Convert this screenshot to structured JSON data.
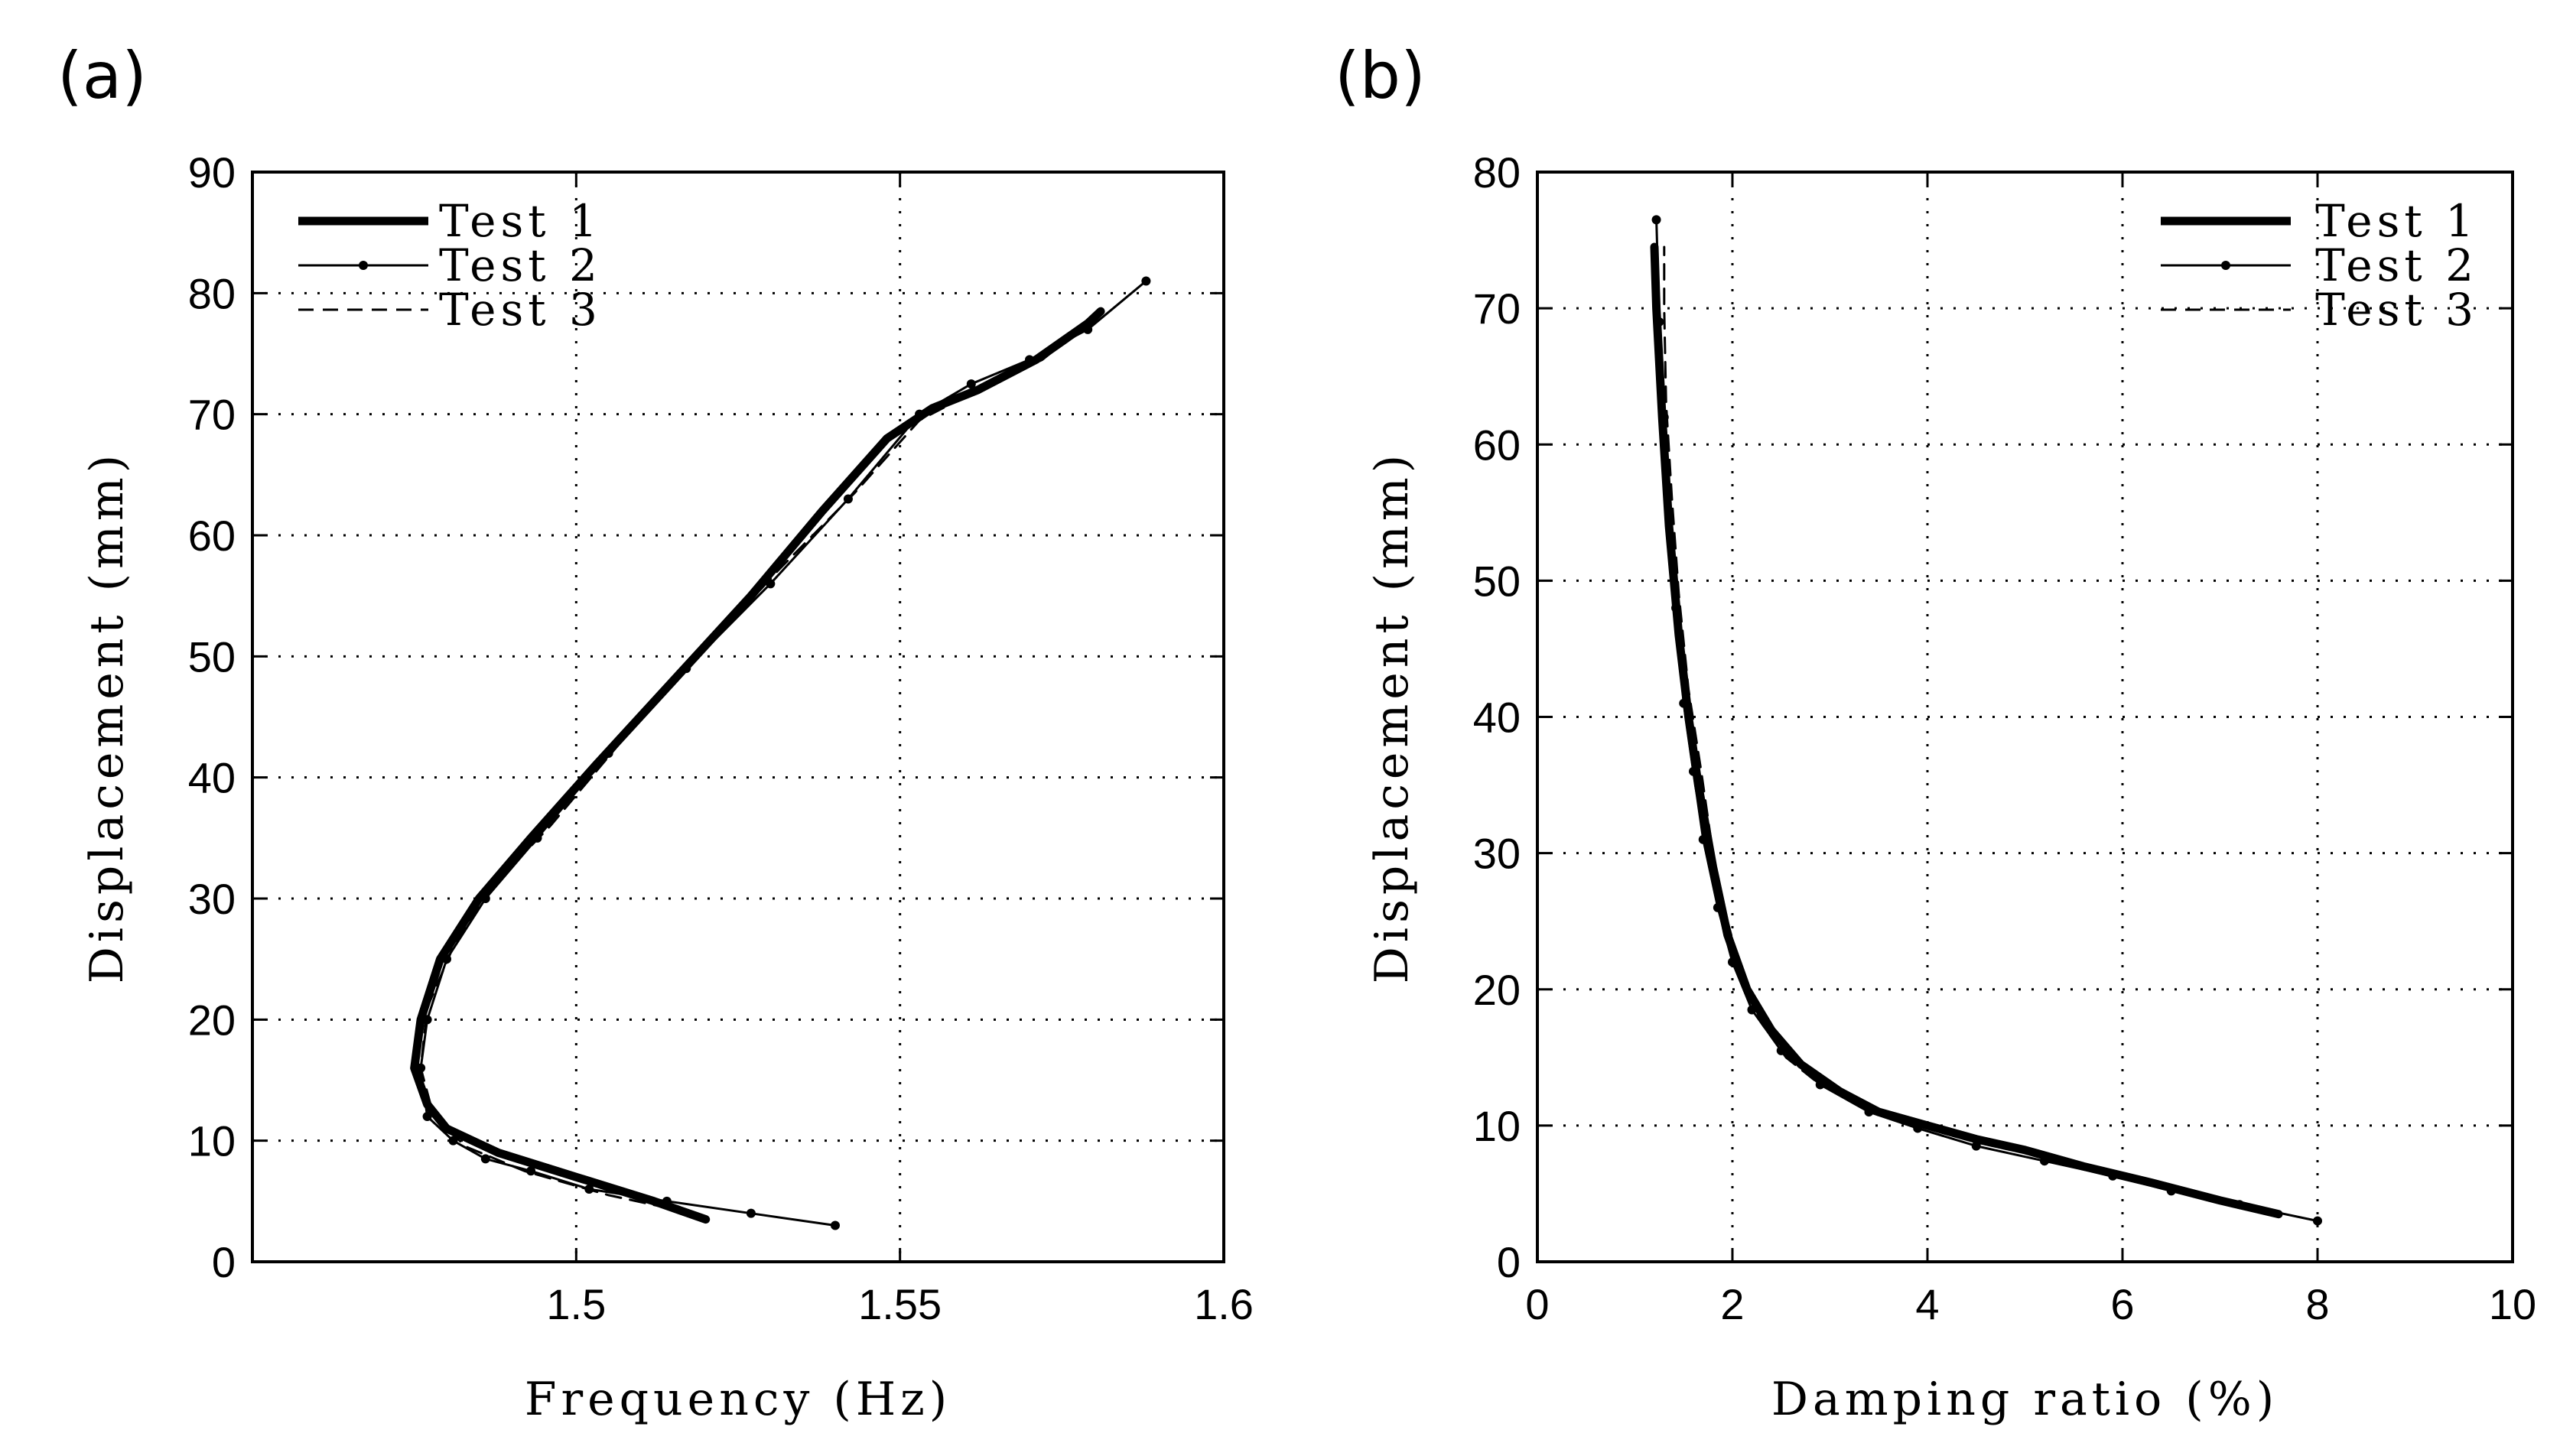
{
  "figure": {
    "panel_labels": [
      "(a)",
      "(b)"
    ]
  },
  "chart_data": [
    {
      "type": "line",
      "panel": "(a)",
      "title": "",
      "xlabel": "Frequency (Hz)",
      "ylabel": "Displacement (mm)",
      "xlim": [
        1.45,
        1.6
      ],
      "ylim": [
        0,
        90
      ],
      "xticks": [
        1.5,
        1.55,
        1.6
      ],
      "xtick_labels": [
        "1.5",
        "1.55",
        "1.6"
      ],
      "yticks": [
        0,
        10,
        20,
        30,
        40,
        50,
        60,
        70,
        80,
        90
      ],
      "ytick_labels": [
        "0",
        "10",
        "20",
        "30",
        "40",
        "50",
        "60",
        "70",
        "80",
        "90"
      ],
      "grid": true,
      "legend_position": "top-left",
      "series": [
        {
          "name": "Test 1",
          "style": "thick-solid",
          "x": [
            1.52,
            1.512,
            1.5,
            1.488,
            1.48,
            1.477,
            1.475,
            1.476,
            1.479,
            1.485,
            1.493,
            1.503,
            1.515,
            1.527,
            1.538,
            1.548,
            1.555,
            1.562,
            1.571,
            1.579,
            1.581
          ],
          "y": [
            3.5,
            5,
            7,
            9,
            11,
            13,
            16,
            20,
            25,
            30,
            35,
            41,
            48,
            55,
            62,
            68,
            70.5,
            72,
            74.5,
            77.5,
            78.5
          ]
        },
        {
          "name": "Test 2",
          "style": "thin-solid-dots",
          "x": [
            1.54,
            1.527,
            1.514,
            1.502,
            1.493,
            1.486,
            1.481,
            1.477,
            1.476,
            1.477,
            1.48,
            1.486,
            1.494,
            1.505,
            1.517,
            1.53,
            1.542,
            1.553,
            1.561,
            1.57,
            1.579,
            1.588
          ],
          "y": [
            3,
            4,
            5,
            6,
            7.5,
            8.5,
            10,
            12,
            16,
            20,
            25,
            30,
            35,
            42,
            49,
            56,
            63,
            70,
            72.5,
            74.5,
            77,
            81
          ]
        },
        {
          "name": "Test 3",
          "style": "dashed",
          "x": [
            1.518,
            1.505,
            1.492,
            1.483,
            1.478,
            1.476,
            1.477,
            1.481,
            1.487,
            1.496,
            1.507,
            1.519,
            1.531,
            1.543,
            1.553,
            1.562,
            1.572,
            1.58
          ],
          "y": [
            4,
            5.5,
            7.5,
            9.5,
            12,
            16,
            21,
            26,
            31,
            36,
            43,
            50,
            57,
            63.5,
            69.5,
            72,
            74.5,
            78
          ]
        }
      ]
    },
    {
      "type": "line",
      "panel": "(b)",
      "title": "",
      "xlabel": "Damping ratio (%)",
      "ylabel": "Displacement (mm)",
      "xlim": [
        0,
        10
      ],
      "ylim": [
        0,
        80
      ],
      "xticks": [
        0,
        2,
        4,
        6,
        8,
        10
      ],
      "xtick_labels": [
        "0",
        "2",
        "4",
        "6",
        "8",
        "10"
      ],
      "yticks": [
        0,
        10,
        20,
        30,
        40,
        50,
        60,
        70,
        80
      ],
      "ytick_labels": [
        "0",
        "10",
        "20",
        "30",
        "40",
        "50",
        "60",
        "70",
        "80"
      ],
      "grid": true,
      "legend_position": "top-right",
      "series": [
        {
          "name": "Test 1",
          "style": "thick-solid",
          "x": [
            7.6,
            7.0,
            6.3,
            5.6,
            5.0,
            4.5,
            4.0,
            3.5,
            3.1,
            2.7,
            2.4,
            2.15,
            1.95,
            1.8,
            1.65,
            1.55,
            1.45,
            1.35,
            1.28,
            1.22,
            1.2
          ],
          "y": [
            3.5,
            4.5,
            5.8,
            7,
            8.2,
            9,
            10,
            11,
            12.5,
            14.5,
            17,
            20,
            24,
            29,
            35,
            40,
            46,
            54,
            62,
            70,
            74.5
          ]
        },
        {
          "name": "Test 2",
          "style": "thin-solid-dots",
          "x": [
            8.0,
            7.2,
            6.5,
            5.9,
            5.2,
            4.5,
            3.9,
            3.4,
            2.9,
            2.5,
            2.2,
            2.0,
            1.85,
            1.7,
            1.6,
            1.5,
            1.42,
            1.35,
            1.3,
            1.25,
            1.22
          ],
          "y": [
            3,
            4.2,
            5.2,
            6.3,
            7.4,
            8.5,
            9.8,
            11,
            13,
            15.5,
            18.5,
            22,
            26,
            31,
            36,
            41,
            48,
            55,
            62,
            69,
            76.5
          ]
        },
        {
          "name": "Test 3",
          "style": "dashed",
          "x": [
            7.4,
            6.8,
            6.1,
            5.5,
            4.9,
            4.3,
            3.8,
            3.3,
            2.9,
            2.55,
            2.3,
            2.1,
            1.95,
            1.8,
            1.68,
            1.55,
            1.45,
            1.38,
            1.32,
            1.3,
            1.3
          ],
          "y": [
            3.8,
            4.8,
            6,
            7.2,
            8.3,
            9.3,
            10.3,
            11.5,
            13,
            15,
            17.5,
            21,
            25,
            30,
            36,
            42,
            49,
            56,
            63,
            70,
            74.5
          ]
        }
      ]
    }
  ]
}
